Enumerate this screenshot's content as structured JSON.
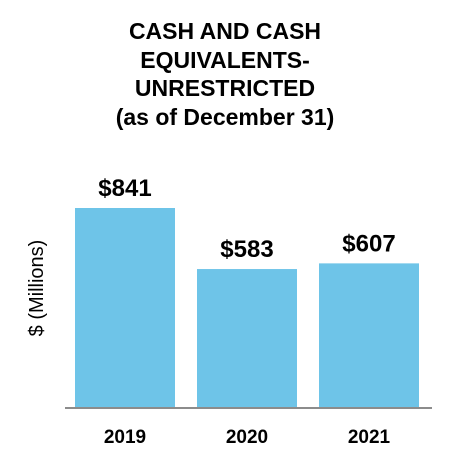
{
  "chart_data": {
    "type": "bar",
    "title_lines": [
      "CASH AND CASH",
      "EQUIVALENTS-",
      "UNRESTRICTED",
      "(as of December 31)"
    ],
    "ylabel": "$ (Millions)",
    "xlabel": "",
    "categories": [
      "2019",
      "2020",
      "2021"
    ],
    "values": [
      841,
      583,
      607
    ],
    "value_labels": [
      "$841",
      "$583",
      "$607"
    ],
    "ylim": [
      0,
      841
    ],
    "grid": false,
    "legend": "none",
    "bar_color": "#6EC4E8",
    "axis_color": "#8C8C8C"
  }
}
